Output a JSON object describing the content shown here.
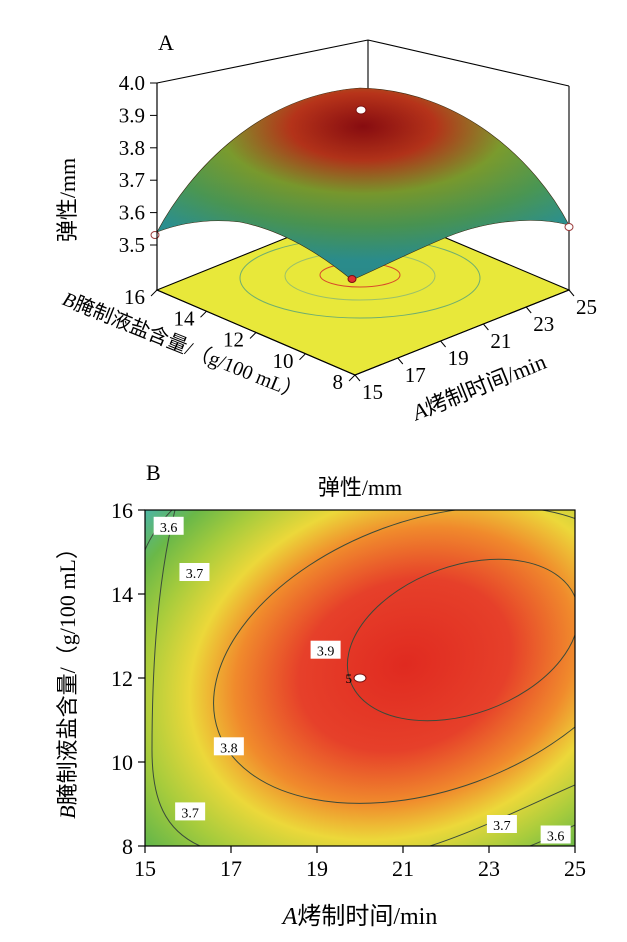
{
  "chart_data": [
    {
      "type": "surface",
      "panel_label": "A",
      "zlabel": "弹性/mm",
      "z_ticks": [
        "3.5",
        "3.6",
        "3.7",
        "3.8",
        "3.9",
        "4.0"
      ],
      "zlim": [
        3.5,
        4.0
      ],
      "x_label_italic": "A",
      "x_label_rest": "烤制时间/min",
      "x_ticks": [
        "15",
        "17",
        "19",
        "21",
        "23",
        "25"
      ],
      "xlim": [
        15,
        25
      ],
      "y_label_italic": "B",
      "y_label_rest": "腌制液盐含量/（g/100 mL）",
      "y_ticks": [
        "8",
        "10",
        "12",
        "14",
        "16"
      ],
      "ylim": [
        8,
        16
      ],
      "colors": {
        "floor": "#e8e83a",
        "low": "#2fa8a8",
        "mid": "#8cc23a",
        "high": "#b01818"
      }
    },
    {
      "type": "contour",
      "panel_label": "B",
      "title": "弹性/mm",
      "x_label_italic": "A",
      "x_label_rest": "烤制时间/min",
      "x_ticks": [
        "15",
        "17",
        "19",
        "21",
        "23",
        "25"
      ],
      "xlim": [
        15,
        25
      ],
      "y_label_italic": "B",
      "y_label_rest": "腌制液盐含量/（g/100 mL）",
      "y_ticks": [
        "8",
        "10",
        "12",
        "14",
        "16"
      ],
      "ylim": [
        8,
        16
      ],
      "contour_levels": [
        3.6,
        3.7,
        3.8,
        3.9
      ],
      "contour_labels": [
        {
          "text": "3.6",
          "x": 15.55,
          "y": 15.6
        },
        {
          "text": "3.7",
          "x": 16.15,
          "y": 14.5
        },
        {
          "text": "3.9",
          "x": 19.2,
          "y": 12.65
        },
        {
          "text": "3.8",
          "x": 16.95,
          "y": 10.35
        },
        {
          "text": "3.7",
          "x": 16.05,
          "y": 8.8
        },
        {
          "text": "3.7",
          "x": 23.3,
          "y": 8.5
        },
        {
          "text": "3.6",
          "x": 24.55,
          "y": 8.25
        }
      ],
      "center_point": {
        "x": 20,
        "y": 12,
        "label": "5"
      },
      "colors": {
        "low": "#3cb4d8",
        "mid": "#e8e23a",
        "high": "#e03024",
        "line": "#3a4a3a"
      }
    }
  ]
}
